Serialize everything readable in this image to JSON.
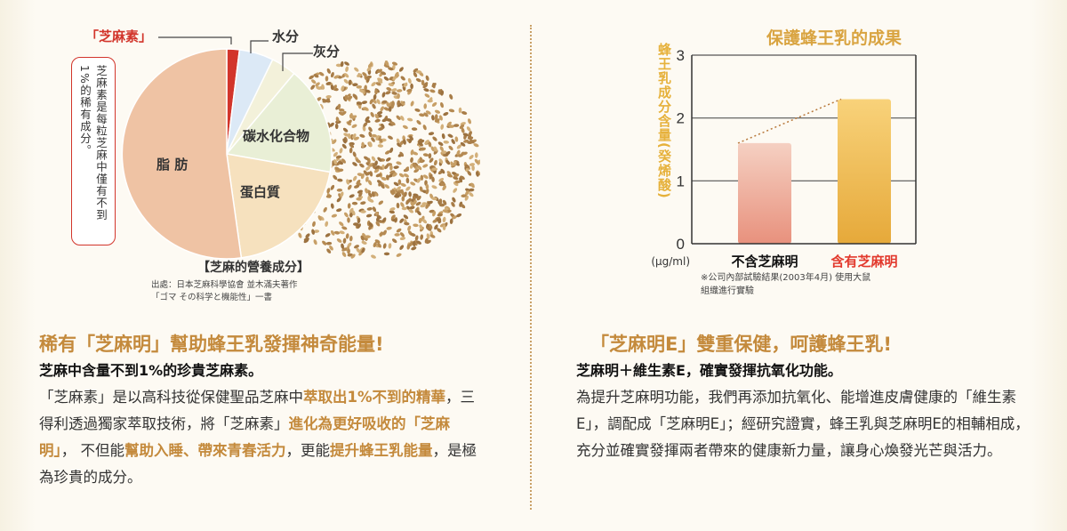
{
  "left": {
    "figure": {
      "sesamin_label": "「芝麻素」",
      "water_label": "水分",
      "ash_label": "灰分",
      "fat_label": "脂 肪",
      "carb_label": "碳水化合物",
      "protein_label": "蛋白質",
      "note_col1": "芝麻素是每粒芝麻中僅有不到",
      "note_col2": "1%的稀有成分。",
      "caption": "【芝麻的營養成分】",
      "source_line1": "出處：日本芝麻科學協會 並木滿夫著作",
      "source_line2": "「ゴマ その科学と機能性」一書",
      "colors": {
        "fat": "#efc3a4",
        "sesamin": "#d2352b",
        "water": "#dce9f6",
        "ash": "#f3f1da",
        "carb": "#e9efd6",
        "protein": "#f6e1be",
        "grain": "#b58a52"
      }
    },
    "heading": "稀有「芝麻明」幫助蜂王乳發揮神奇能量!",
    "subheading": "芝麻中含量不到1%的珍貴芝麻素。",
    "body": {
      "p1": "「芝麻素」是以高科技從保健聖品芝麻中",
      "h1": "萃取出1%不到的精華",
      "p2": "，三得利透過獨家萃取技術，將「芝麻素」",
      "h2": "進化為更好吸收的「芝麻明」",
      "p3": "， 不但能",
      "h3": "幫助入睡、帶來青春活力",
      "p4": "，更能",
      "h4": "提升蜂王乳能量",
      "p5": "，是極為珍貴的成分。"
    }
  },
  "right": {
    "chart_title": "保護蜂王乳的成果",
    "y_axis_label": "蜂王乳成分含量(癸烯酸)",
    "unit_label": "(μg/ml)",
    "note_line1": "※公司內部試驗結果(2003年4月) 使用大鼠",
    "note_line2": "組織進行實驗",
    "heading": "「芝麻明E」雙重保健，呵護蜂王乳!",
    "subheading": "芝麻明＋維生素E，確實發揮抗氧化功能。",
    "body": "為提升芝麻明功能，我們再添加抗氧化、能增進皮膚健康的「維生素E」，調配成「芝麻明E」；經研究證實，蜂王乳與芝麻明E的相輔相成，充分並確實發揮兩者帶來的健康新力量，讓身心煥發光芒與活力。"
  },
  "chart_data": {
    "type": "bar",
    "title": "保護蜂王乳的成果",
    "ylabel": "蜂王乳成分含量(癸烯酸)",
    "yunit": "(μg/ml)",
    "categories": [
      "不含芝麻明",
      "含有芝麻明"
    ],
    "values": [
      1.6,
      2.3
    ],
    "ylim": [
      0,
      3
    ],
    "yticks": [
      0,
      1,
      2,
      3
    ],
    "grid": true,
    "category_colors": [
      "#111111",
      "#e2392d"
    ],
    "bar_colors": [
      [
        "#f5d0c2",
        "#e8917d"
      ],
      [
        "#f8d27a",
        "#e6a93a"
      ]
    ],
    "trend_line": "dotted"
  }
}
